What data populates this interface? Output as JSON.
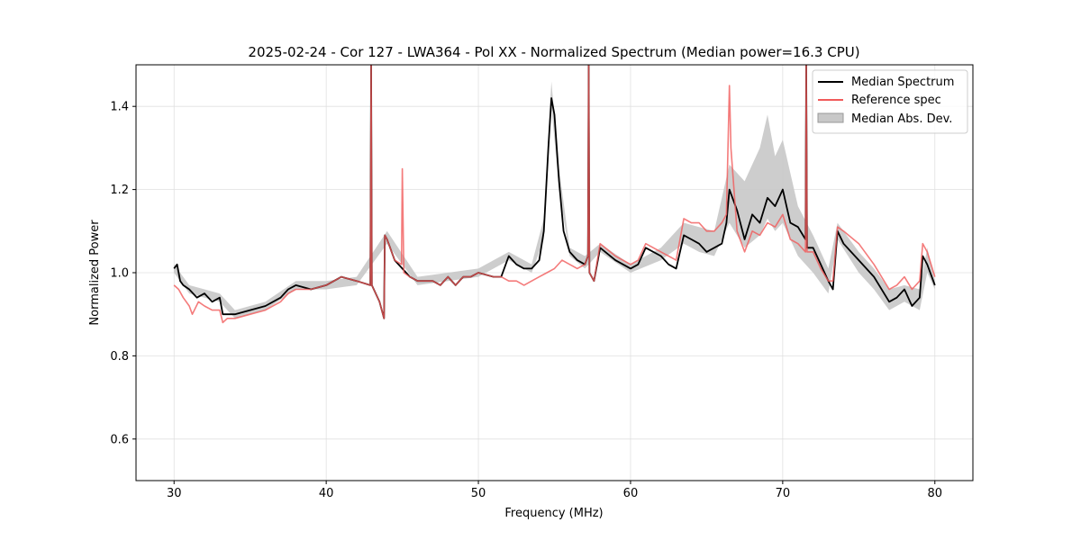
{
  "chart_data": {
    "type": "line",
    "title": "2025-02-24 - Cor 127 - LWA364 - Pol XX - Normalized Spectrum (Median power=16.3 CPU)",
    "xlabel": "Frequency (MHz)",
    "ylabel": "Normalized Power",
    "xlim": [
      27.5,
      82.5
    ],
    "ylim": [
      0.5,
      1.5
    ],
    "xticks": [
      30,
      40,
      50,
      60,
      70,
      80
    ],
    "yticks": [
      0.6,
      0.8,
      1.0,
      1.2,
      1.4
    ],
    "xtick_labels": [
      "30",
      "40",
      "50",
      "60",
      "70",
      "80"
    ],
    "ytick_labels": [
      "0.6",
      "0.8",
      "1.0",
      "1.2",
      "1.4"
    ],
    "grid": true,
    "legend_position": "top-right",
    "legend": [
      {
        "label": "Median Spectrum",
        "color": "#000000",
        "kind": "line"
      },
      {
        "label": "Reference spec",
        "color": "#f15a5a",
        "kind": "line"
      },
      {
        "label": "Median Abs. Dev.",
        "color": "#c8c8c8",
        "kind": "patch"
      }
    ],
    "series": [
      {
        "name": "Median Spectrum",
        "color": "#000000",
        "x": [
          30.0,
          30.2,
          30.4,
          30.6,
          31.0,
          31.5,
          32.0,
          32.5,
          33.0,
          33.2,
          33.5,
          34.0,
          35.0,
          36.0,
          37.0,
          37.5,
          38.0,
          39.0,
          40.0,
          41.0,
          42.0,
          42.9,
          42.95,
          43.0,
          43.5,
          43.8,
          43.85,
          44.0,
          44.5,
          45.0,
          45.5,
          46.0,
          47.0,
          47.5,
          48.0,
          48.5,
          49.0,
          49.5,
          50.0,
          51.0,
          51.5,
          52.0,
          52.5,
          53.0,
          53.5,
          54.0,
          54.3,
          54.6,
          54.8,
          55.0,
          55.3,
          55.6,
          56.0,
          56.5,
          57.0,
          57.2,
          57.25,
          57.3,
          57.6,
          58.0,
          59.0,
          60.0,
          60.5,
          61.0,
          62.0,
          62.5,
          63.0,
          63.5,
          64.0,
          64.5,
          65.0,
          65.5,
          66.0,
          66.3,
          66.5,
          67.0,
          67.5,
          68.0,
          68.5,
          69.0,
          69.5,
          70.0,
          70.5,
          71.0,
          71.5,
          71.55,
          71.6,
          72.0,
          72.5,
          73.0,
          73.3,
          73.6,
          74.0,
          75.0,
          76.0,
          77.0,
          77.5,
          78.0,
          78.5,
          79.0,
          79.2,
          79.5,
          80.0
        ],
        "values": [
          1.01,
          1.02,
          0.98,
          0.97,
          0.96,
          0.94,
          0.95,
          0.93,
          0.94,
          0.9,
          0.9,
          0.9,
          0.91,
          0.92,
          0.94,
          0.96,
          0.97,
          0.96,
          0.97,
          0.99,
          0.98,
          0.97,
          1.5,
          0.97,
          0.93,
          0.89,
          1.09,
          1.08,
          1.03,
          1.01,
          0.99,
          0.98,
          0.98,
          0.97,
          0.99,
          0.97,
          0.99,
          0.99,
          1.0,
          0.99,
          0.99,
          1.04,
          1.02,
          1.01,
          1.01,
          1.03,
          1.1,
          1.3,
          1.42,
          1.38,
          1.22,
          1.1,
          1.05,
          1.03,
          1.02,
          1.04,
          1.5,
          1.0,
          0.98,
          1.06,
          1.03,
          1.01,
          1.02,
          1.06,
          1.04,
          1.02,
          1.01,
          1.09,
          1.08,
          1.07,
          1.05,
          1.06,
          1.07,
          1.12,
          1.2,
          1.15,
          1.08,
          1.14,
          1.12,
          1.18,
          1.16,
          1.2,
          1.12,
          1.11,
          1.08,
          1.5,
          1.06,
          1.06,
          1.02,
          0.98,
          0.96,
          1.1,
          1.07,
          1.03,
          0.99,
          0.93,
          0.94,
          0.96,
          0.92,
          0.94,
          1.04,
          1.02,
          0.97
        ]
      },
      {
        "name": "Reference spec",
        "color": "#f15a5a",
        "x": [
          30.0,
          30.3,
          30.6,
          31.0,
          31.2,
          31.6,
          32.0,
          32.5,
          33.0,
          33.2,
          33.5,
          34.0,
          35.0,
          36.0,
          37.0,
          37.5,
          38.0,
          39.0,
          40.0,
          41.0,
          42.0,
          42.9,
          42.95,
          43.0,
          43.5,
          43.8,
          43.85,
          44.0,
          44.5,
          44.95,
          45.0,
          45.1,
          45.5,
          46.0,
          47.0,
          47.5,
          48.0,
          48.5,
          49.0,
          49.5,
          50.0,
          51.0,
          51.5,
          52.0,
          52.5,
          53.0,
          53.5,
          54.0,
          54.5,
          55.0,
          55.5,
          56.0,
          56.5,
          57.0,
          57.2,
          57.25,
          57.3,
          57.6,
          58.0,
          59.0,
          60.0,
          60.5,
          61.0,
          62.0,
          62.5,
          63.0,
          63.5,
          64.0,
          64.5,
          65.0,
          65.5,
          66.0,
          66.3,
          66.5,
          66.6,
          67.0,
          67.5,
          68.0,
          68.5,
          69.0,
          69.5,
          70.0,
          70.5,
          71.0,
          71.5,
          71.55,
          71.6,
          72.0,
          72.5,
          73.0,
          73.3,
          73.6,
          74.0,
          75.0,
          76.0,
          77.0,
          77.5,
          78.0,
          78.5,
          79.0,
          79.2,
          79.5,
          80.0
        ],
        "values": [
          0.97,
          0.96,
          0.94,
          0.92,
          0.9,
          0.93,
          0.92,
          0.91,
          0.91,
          0.88,
          0.89,
          0.89,
          0.9,
          0.91,
          0.93,
          0.95,
          0.96,
          0.96,
          0.97,
          0.99,
          0.98,
          0.97,
          1.5,
          0.97,
          0.93,
          0.89,
          1.09,
          1.08,
          1.03,
          1.02,
          1.25,
          1.0,
          0.99,
          0.98,
          0.98,
          0.97,
          0.99,
          0.97,
          0.99,
          0.99,
          1.0,
          0.99,
          0.99,
          0.98,
          0.98,
          0.97,
          0.98,
          0.99,
          1.0,
          1.01,
          1.03,
          1.02,
          1.01,
          1.02,
          1.04,
          1.5,
          1.0,
          0.98,
          1.07,
          1.04,
          1.02,
          1.03,
          1.07,
          1.05,
          1.04,
          1.03,
          1.13,
          1.12,
          1.12,
          1.1,
          1.1,
          1.12,
          1.14,
          1.45,
          1.3,
          1.1,
          1.05,
          1.1,
          1.09,
          1.12,
          1.11,
          1.14,
          1.08,
          1.07,
          1.05,
          1.5,
          1.05,
          1.05,
          1.01,
          0.98,
          0.98,
          1.11,
          1.1,
          1.07,
          1.02,
          0.96,
          0.97,
          0.99,
          0.96,
          0.98,
          1.07,
          1.05,
          0.99
        ]
      }
    ],
    "band": {
      "name": "Median Abs. Dev.",
      "color": "#c8c8c8",
      "x": [
        30.0,
        31.0,
        32.0,
        33.0,
        34.0,
        36.0,
        38.0,
        40.0,
        42.0,
        44.0,
        46.0,
        48.0,
        50.0,
        52.0,
        53.5,
        54.3,
        54.8,
        55.3,
        56.0,
        57.0,
        58.0,
        60.0,
        62.0,
        63.5,
        64.5,
        65.5,
        66.5,
        67.5,
        68.5,
        69.0,
        69.5,
        70.0,
        70.5,
        71.0,
        72.0,
        73.0,
        73.6,
        75.0,
        76.0,
        77.0,
        78.0,
        79.0,
        79.5,
        80.0
      ],
      "lower": [
        1.0,
        0.95,
        0.94,
        0.93,
        0.89,
        0.91,
        0.96,
        0.96,
        0.97,
        1.07,
        0.97,
        0.98,
        0.99,
        1.03,
        1.0,
        1.08,
        1.4,
        1.2,
        1.04,
        1.01,
        1.05,
        1.0,
        1.03,
        1.07,
        1.05,
        1.04,
        1.12,
        1.06,
        1.09,
        1.13,
        1.1,
        1.12,
        1.08,
        1.04,
        1.0,
        0.95,
        1.08,
        1.0,
        0.96,
        0.91,
        0.93,
        0.91,
        1.0,
        0.96
      ],
      "upper": [
        1.02,
        0.97,
        0.96,
        0.95,
        0.91,
        0.93,
        0.98,
        0.98,
        0.99,
        1.1,
        0.99,
        1.0,
        1.01,
        1.05,
        1.02,
        1.13,
        1.46,
        1.25,
        1.06,
        1.04,
        1.07,
        1.02,
        1.06,
        1.12,
        1.11,
        1.1,
        1.26,
        1.22,
        1.3,
        1.38,
        1.28,
        1.32,
        1.24,
        1.16,
        1.09,
        1.01,
        1.12,
        1.05,
        1.01,
        0.96,
        0.97,
        0.96,
        1.06,
        0.98
      ]
    }
  }
}
